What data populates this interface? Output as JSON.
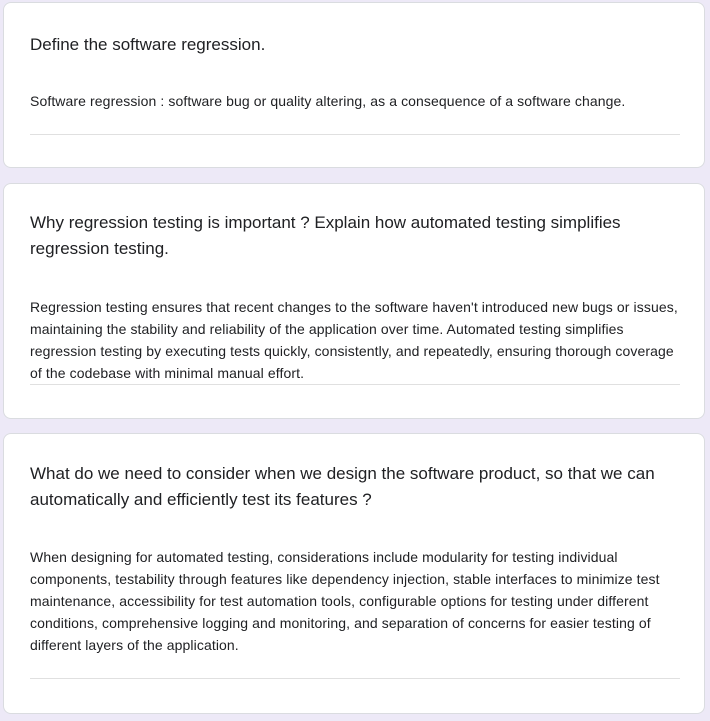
{
  "cards": [
    {
      "question": "Define the software regression.",
      "answer": "Software regression : software bug or quality altering, as a consequence of a software change."
    },
    {
      "question": "Why regression testing is important ? Explain how automated testing simplifies regression testing.",
      "answer": "Regression testing ensures that recent changes to the software haven't introduced new bugs or issues, maintaining the stability and reliability of the application over time. Automated testing simplifies regression testing by executing tests quickly, consistently, and repeatedly, ensuring thorough coverage of the codebase with minimal manual effort."
    },
    {
      "question": "What do we need to consider when we design the software product, so that we can automatically and efficiently test its features ?",
      "answer": "When designing for automated testing, considerations include modularity for testing individual components, testability through features like dependency injection, stable interfaces to minimize test maintenance, accessibility for test automation tools, configurable options for testing under different conditions, comprehensive logging and monitoring, and separation of concerns for easier testing of different layers of the application."
    }
  ]
}
